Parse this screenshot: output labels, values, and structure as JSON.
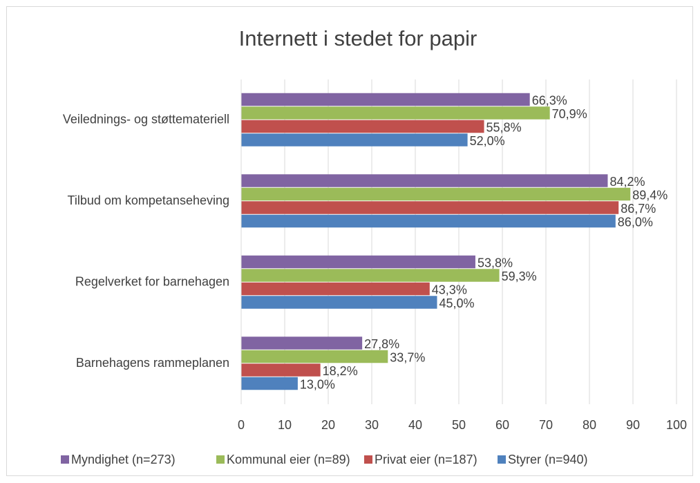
{
  "chart_data": {
    "type": "hbar",
    "title": "Internett i stedet for papir",
    "categories": [
      "Veilednings- og støttemateriell",
      "Tilbud om kompetanseheving",
      "Regelverket for barnehagen",
      "Barnehagens rammeplanen"
    ],
    "series": [
      {
        "name": "Myndighet (n=273)",
        "color": "#8064a2",
        "values": [
          66.3,
          84.2,
          53.8,
          27.8
        ],
        "value_labels": [
          "66,3%",
          "84,2%",
          "53,8%",
          "27,8%"
        ]
      },
      {
        "name": "Kommunal eier (n=89)",
        "color": "#9bbb59",
        "values": [
          70.9,
          89.4,
          59.3,
          33.7
        ],
        "value_labels": [
          "70,9%",
          "89,4%",
          "59,3%",
          "33,7%"
        ]
      },
      {
        "name": "Privat eier (n=187)",
        "color": "#c0504d",
        "values": [
          55.8,
          86.7,
          43.3,
          18.2
        ],
        "value_labels": [
          "55,8%",
          "86,7%",
          "43,3%",
          "18,2%"
        ]
      },
      {
        "name": "Styrer (n=940)",
        "color": "#4f81bd",
        "values": [
          52.0,
          86.0,
          45.0,
          13.0
        ],
        "value_labels": [
          "52,0%",
          "86,0%",
          "45,0%",
          "13,0%"
        ]
      }
    ],
    "xlim": [
      0,
      100
    ],
    "xticks": [
      0,
      10,
      20,
      30,
      40,
      50,
      60,
      70,
      80,
      90,
      100
    ],
    "grid": true,
    "legend": "bottom"
  }
}
